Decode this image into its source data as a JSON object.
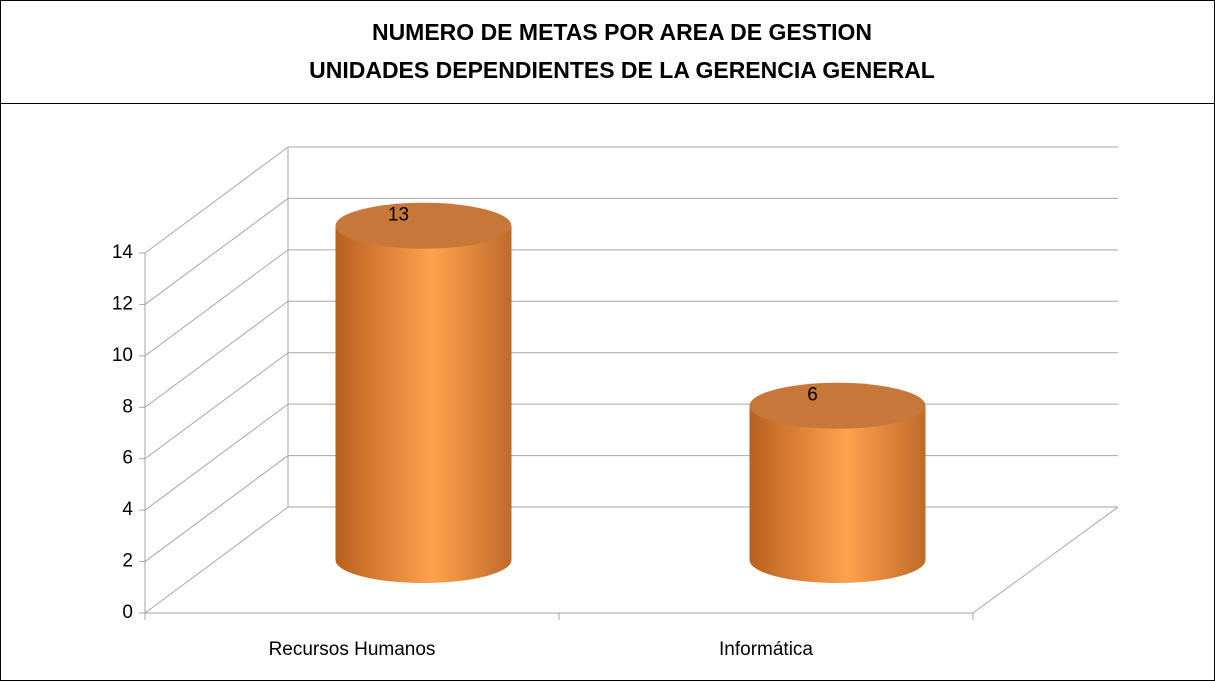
{
  "chart_data": {
    "type": "bar3d",
    "title": "NUMERO DE METAS POR AREA DE GESTION",
    "subtitle": "UNIDADES DEPENDIENTES DE LA GERENCIA GENERAL",
    "categories": [
      "Recursos Humanos",
      "Informática"
    ],
    "values": [
      13,
      6
    ],
    "color": "#f59440",
    "ylim": [
      0,
      14
    ],
    "yticks": [
      0,
      2,
      4,
      6,
      8,
      10,
      12,
      14
    ],
    "grid": true
  }
}
